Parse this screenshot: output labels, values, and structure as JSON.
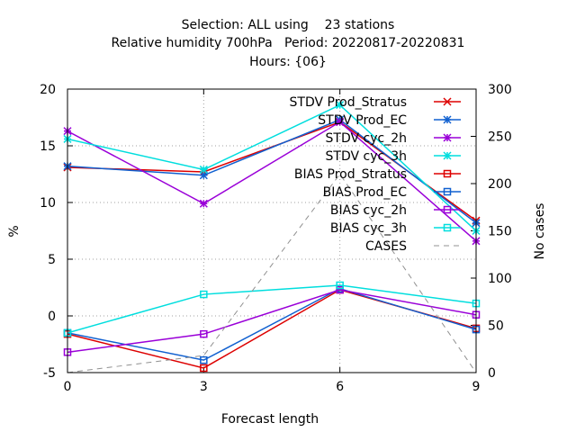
{
  "header": {
    "line1": "Selection: ALL using    23 stations",
    "line2": "Relative humidity 700hPa   Period: 20220817-20220831",
    "line3": "Hours: {06}"
  },
  "chart_data": {
    "type": "line",
    "xlabel": "Forecast length",
    "ylabel": "%",
    "y2label": "No cases",
    "x": [
      0,
      3,
      6,
      9
    ],
    "xlim": [
      0,
      9
    ],
    "ylim": [
      -5,
      20
    ],
    "y2lim": [
      0,
      300
    ],
    "xticks": [
      "0",
      "3",
      "6",
      "9"
    ],
    "yticks": [
      "-5",
      "0",
      "5",
      "10",
      "15",
      "20"
    ],
    "y2ticks": [
      "0",
      "50",
      "100",
      "150",
      "200",
      "250",
      "300"
    ],
    "grid": true,
    "legend_position": "top-right",
    "series": [
      {
        "name": "STDV Prod_Stratus",
        "values": [
          13.1,
          12.7,
          17.1,
          8.4
        ],
        "color": "#dd0000",
        "marker": "x",
        "axis": "y"
      },
      {
        "name": "STDV Prod_EC",
        "values": [
          13.2,
          12.4,
          17.3,
          8.2
        ],
        "color": "#1060d0",
        "marker": "star",
        "axis": "y"
      },
      {
        "name": "STDV cyc_2h",
        "values": [
          16.3,
          9.9,
          17.1,
          6.6
        ],
        "color": "#9a00d8",
        "marker": "star",
        "axis": "y"
      },
      {
        "name": "STDV cyc_3h",
        "values": [
          15.6,
          12.9,
          18.6,
          7.5
        ],
        "color": "#00dede",
        "marker": "star",
        "axis": "y"
      },
      {
        "name": "BIAS Prod_Stratus",
        "values": [
          -1.6,
          -4.6,
          2.3,
          -1.1
        ],
        "color": "#dd0000",
        "marker": "square",
        "axis": "y"
      },
      {
        "name": "BIAS Prod_EC",
        "values": [
          -1.5,
          -3.9,
          2.4,
          -1.2
        ],
        "color": "#1060d0",
        "marker": "square",
        "axis": "y"
      },
      {
        "name": "BIAS cyc_2h",
        "values": [
          -3.2,
          -1.6,
          2.3,
          0.1
        ],
        "color": "#9a00d8",
        "marker": "square",
        "axis": "y"
      },
      {
        "name": "BIAS cyc_3h",
        "values": [
          -1.5,
          1.9,
          2.7,
          1.1
        ],
        "color": "#00dede",
        "marker": "square",
        "axis": "y"
      },
      {
        "name": "CASES",
        "values": [
          0,
          18,
          210,
          0
        ],
        "color": "#909090",
        "marker": "none",
        "dashed": true,
        "axis": "y2"
      }
    ]
  }
}
